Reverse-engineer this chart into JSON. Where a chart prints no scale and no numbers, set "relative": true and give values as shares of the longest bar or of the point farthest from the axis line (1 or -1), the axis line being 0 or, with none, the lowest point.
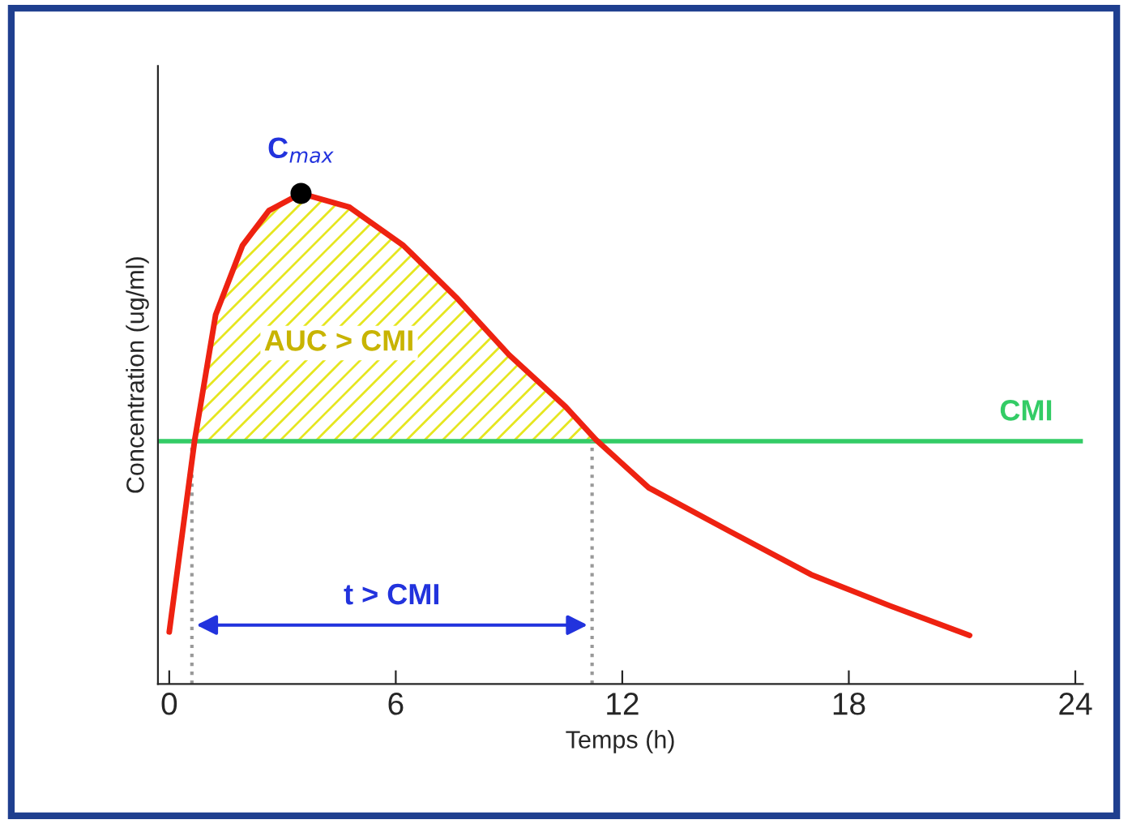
{
  "chart_data": {
    "type": "line",
    "relative": true,
    "xlabel": "Temps (h)",
    "ylabel": "Concentration (ug/ml)",
    "xlim": [
      -0.3,
      24.2
    ],
    "xticks": [
      0,
      6,
      12,
      18,
      24
    ],
    "grid": false,
    "legend": false,
    "line_style": "solid",
    "series": [
      {
        "marker": "none",
        "color": "#ee2211",
        "x": [
          0,
          0.67,
          1.23,
          1.94,
          2.64,
          3.49,
          4.77,
          6.2,
          7.6,
          9.0,
          10.5,
          11.3,
          12.7,
          14.85,
          17.0,
          19.1,
          21.2
        ],
        "values": [
          0.106,
          0.495,
          0.753,
          0.894,
          0.965,
          1.0,
          0.972,
          0.894,
          0.788,
          0.671,
          0.565,
          0.498,
          0.4,
          0.311,
          0.223,
          0.159,
          0.099
        ]
      },
      {
        "type": "scatter",
        "marker": "circle",
        "color": "#000000",
        "x": [
          3.49
        ],
        "values": [
          1.0
        ]
      }
    ],
    "ref_lines": [
      {
        "axis": "y",
        "value": 0.495,
        "label": "CMI",
        "color": "#33cc66",
        "line_style": "solid"
      },
      {
        "axis": "x",
        "value": 0.6,
        "color": "#999999",
        "line_style": "dotted"
      },
      {
        "axis": "x",
        "value": 11.2,
        "color": "#999999",
        "line_style": "dotted"
      }
    ],
    "annotations": [
      {
        "text": "C$_{max}$",
        "x": 3.49,
        "y": 1.0
      },
      "AUC > CMI",
      "t > CMI"
    ]
  }
}
